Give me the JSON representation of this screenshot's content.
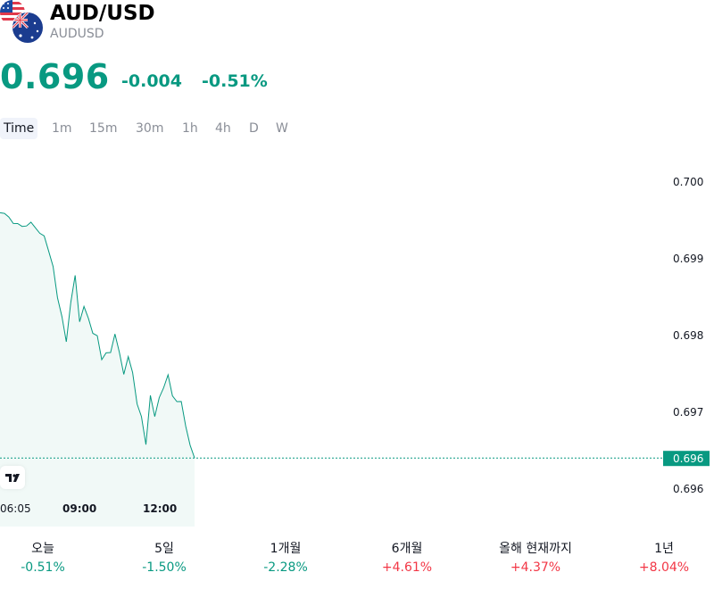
{
  "header": {
    "symbol": "AUD/USD",
    "ticker": "AUDUSD"
  },
  "quote": {
    "price": "0.696",
    "change": "-0.004",
    "change_pct": "-0.51%"
  },
  "timeframes": [
    "Time",
    "1m",
    "15m",
    "30m",
    "1h",
    "4h",
    "D",
    "W"
  ],
  "active_timeframe": "Time",
  "chart_data": {
    "type": "area",
    "y_ticks": [
      "0.700",
      "0.699",
      "0.698",
      "0.697",
      "0.696"
    ],
    "x_ticks": [
      "06:05",
      "09:00",
      "12:00"
    ],
    "ylim": [
      0.6955,
      0.7005
    ],
    "last_price_label": "0.696",
    "series": [
      {
        "x": [
          "06:05",
          "06:15",
          "06:25",
          "06:35",
          "06:45",
          "06:55",
          "07:05",
          "07:15",
          "07:25",
          "07:35",
          "07:45",
          "07:55",
          "08:05",
          "08:15",
          "08:25",
          "08:35",
          "08:45",
          "08:55",
          "09:05",
          "09:15",
          "09:25",
          "09:35",
          "09:45",
          "09:55",
          "10:05",
          "10:15",
          "10:25",
          "10:35",
          "10:45",
          "10:55",
          "11:05",
          "11:15",
          "11:25",
          "11:35",
          "11:45",
          "11:55",
          "12:05",
          "12:15",
          "12:25",
          "12:35",
          "12:45",
          "12:55",
          "13:05",
          "13:15",
          "13:25"
        ],
        "values": [
          0.7,
          0.7,
          0.69995,
          0.69985,
          0.69985,
          0.6998,
          0.6998,
          0.69985,
          0.69975,
          0.69965,
          0.6996,
          0.69935,
          0.6991,
          0.6986,
          0.6983,
          0.6979,
          0.69855,
          0.699,
          0.69825,
          0.6985,
          0.6983,
          0.69805,
          0.698,
          0.6976,
          0.6977,
          0.6977,
          0.698,
          0.6977,
          0.69735,
          0.69765,
          0.6974,
          0.6969,
          0.6967,
          0.69625,
          0.69705,
          0.6967,
          0.697,
          0.69715,
          0.69735,
          0.697,
          0.6969,
          0.6969,
          0.6965,
          0.6962,
          0.696
        ]
      }
    ],
    "colors": {
      "line": "#089981",
      "fill": "#e8f5f2",
      "last_price_bg": "#089981"
    }
  },
  "periods": [
    {
      "label": "오늘",
      "value": "-0.51%",
      "direction": "down"
    },
    {
      "label": "5일",
      "value": "-1.50%",
      "direction": "down"
    },
    {
      "label": "1개월",
      "value": "-2.28%",
      "direction": "down"
    },
    {
      "label": "6개월",
      "value": "+4.61%",
      "direction": "up"
    },
    {
      "label": "올해 현재까지",
      "value": "+4.37%",
      "direction": "up"
    },
    {
      "label": "1년",
      "value": "+8.04%",
      "direction": "up"
    }
  ]
}
